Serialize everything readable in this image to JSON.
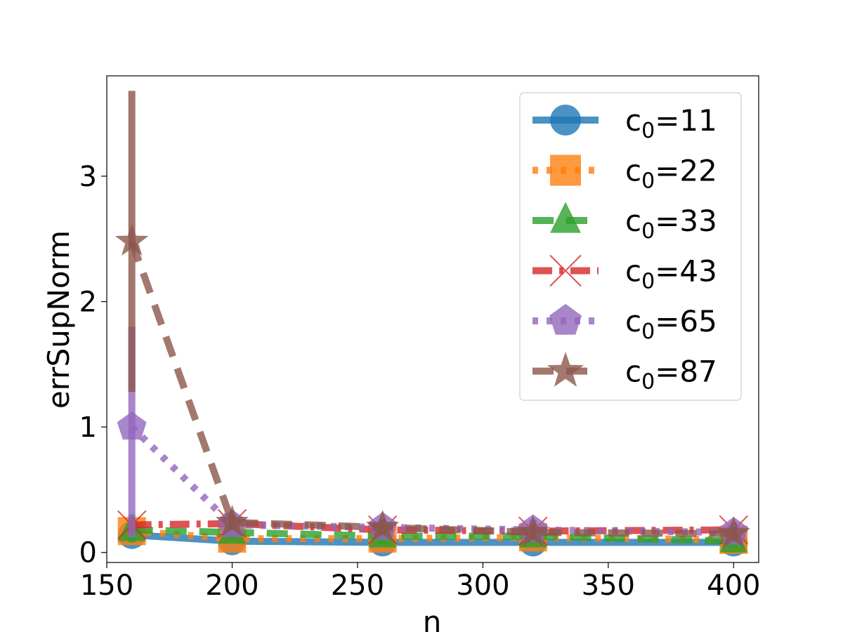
{
  "chart_data": {
    "type": "line",
    "title": "",
    "xlabel": "n",
    "ylabel": "errSupNorm",
    "xlim": [
      150,
      410
    ],
    "ylim": [
      -0.08,
      3.8
    ],
    "x_ticks": [
      150,
      200,
      250,
      300,
      350,
      400
    ],
    "y_ticks": [
      0,
      1,
      2,
      3
    ],
    "legend_position": "top-right",
    "x": [
      160,
      200,
      260,
      320,
      400
    ],
    "series": [
      {
        "name_prefix": "c",
        "name_sub": "0",
        "name_suffix": "=11",
        "color": "#1f77b4",
        "linestyle": "solid",
        "marker": "circle",
        "values": [
          0.14,
          0.09,
          0.08,
          0.08,
          0.08
        ],
        "err_low": [
          0.12,
          0.07,
          0.06,
          0.06,
          0.06
        ],
        "err_high": [
          0.18,
          0.12,
          0.11,
          0.11,
          0.11
        ]
      },
      {
        "name_prefix": "c",
        "name_sub": "0",
        "name_suffix": "=22",
        "color": "#ff7f0e",
        "linestyle": "dotted",
        "marker": "square",
        "values": [
          0.17,
          0.11,
          0.11,
          0.12,
          0.1
        ],
        "err_low": [
          0.08,
          0.07,
          0.05,
          0.05,
          0.04
        ],
        "err_high": [
          0.28,
          0.18,
          0.2,
          0.25,
          0.22
        ]
      },
      {
        "name_prefix": "c",
        "name_sub": "0",
        "name_suffix": "=33",
        "color": "#2ca02c",
        "linestyle": "dashed",
        "marker": "triangle",
        "values": [
          0.18,
          0.16,
          0.13,
          0.13,
          0.09
        ],
        "err_low": [
          0.08,
          0.1,
          0.07,
          0.07,
          0.04
        ],
        "err_high": [
          0.3,
          0.22,
          0.2,
          0.2,
          0.16
        ]
      },
      {
        "name_prefix": "c",
        "name_sub": "0",
        "name_suffix": "=43",
        "color": "#d62728",
        "linestyle": "dashdot",
        "marker": "x",
        "values": [
          0.22,
          0.23,
          0.18,
          0.17,
          0.18
        ],
        "err_low": [
          0.16,
          0.18,
          0.13,
          0.12,
          0.12
        ],
        "err_high": [
          0.28,
          0.28,
          0.23,
          0.22,
          0.24
        ]
      },
      {
        "name_prefix": "c",
        "name_sub": "0",
        "name_suffix": "=65",
        "color": "#9467bd",
        "linestyle": "dotted",
        "marker": "pentagon",
        "values": [
          1.0,
          0.22,
          0.2,
          0.18,
          0.16
        ],
        "err_low": [
          0.12,
          0.15,
          0.14,
          0.12,
          0.1
        ],
        "err_high": [
          1.8,
          0.28,
          0.27,
          0.26,
          0.23
        ]
      },
      {
        "name_prefix": "c",
        "name_sub": "0",
        "name_suffix": "=87",
        "color": "#8c564b",
        "linestyle": "dashed",
        "marker": "star",
        "values": [
          2.48,
          0.24,
          0.2,
          0.16,
          0.15
        ],
        "err_low": [
          1.28,
          0.18,
          0.14,
          0.1,
          0.1
        ],
        "err_high": [
          3.68,
          0.3,
          0.26,
          0.22,
          0.2
        ]
      }
    ]
  }
}
